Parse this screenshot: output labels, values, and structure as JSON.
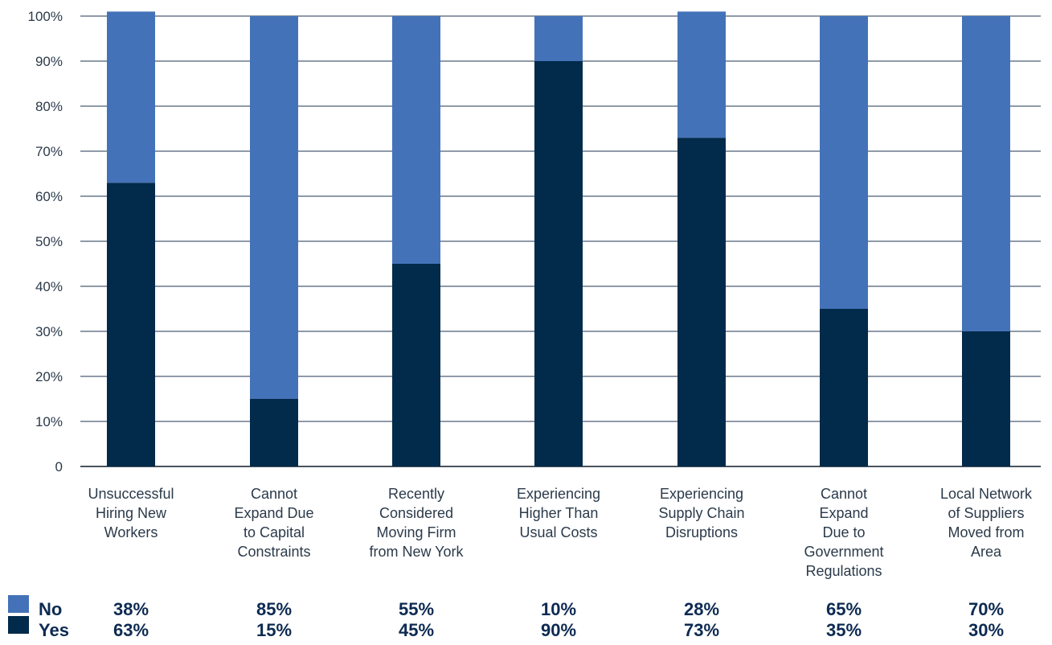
{
  "chart_data": {
    "type": "bar",
    "stacked": true,
    "categories": [
      [
        "Unsuccessful",
        "Hiring New",
        "Workers"
      ],
      [
        "Cannot",
        "Expand Due",
        "to Capital",
        "Constraints"
      ],
      [
        "Recently",
        "Considered",
        "Moving Firm",
        "from New York"
      ],
      [
        "Experiencing",
        "Higher Than",
        "Usual Costs"
      ],
      [
        "Experiencing",
        "Supply Chain",
        "Disruptions"
      ],
      [
        "Cannot",
        "Expand",
        "Due to",
        "Government",
        "Regulations"
      ],
      [
        "Local Network",
        "of Suppliers",
        "Moved from",
        "Area"
      ]
    ],
    "series": [
      {
        "name": "Yes",
        "color": "#022a4a",
        "values": [
          63,
          15,
          45,
          90,
          73,
          35,
          30
        ],
        "labels": [
          "63%",
          "15%",
          "45%",
          "90%",
          "73%",
          "35%",
          "30%"
        ]
      },
      {
        "name": "No",
        "color": "#4472b8",
        "values": [
          38,
          85,
          55,
          10,
          28,
          65,
          70
        ],
        "labels": [
          "38%",
          "85%",
          "55%",
          "10%",
          "28%",
          "65%",
          "70%"
        ]
      }
    ],
    "y_ticks": [
      "0",
      "10%",
      "20%",
      "30%",
      "40%",
      "50%",
      "60%",
      "70%",
      "80%",
      "90%",
      "100%"
    ],
    "ylim": [
      0,
      100
    ],
    "grid": true,
    "legend": "bottom-left"
  }
}
